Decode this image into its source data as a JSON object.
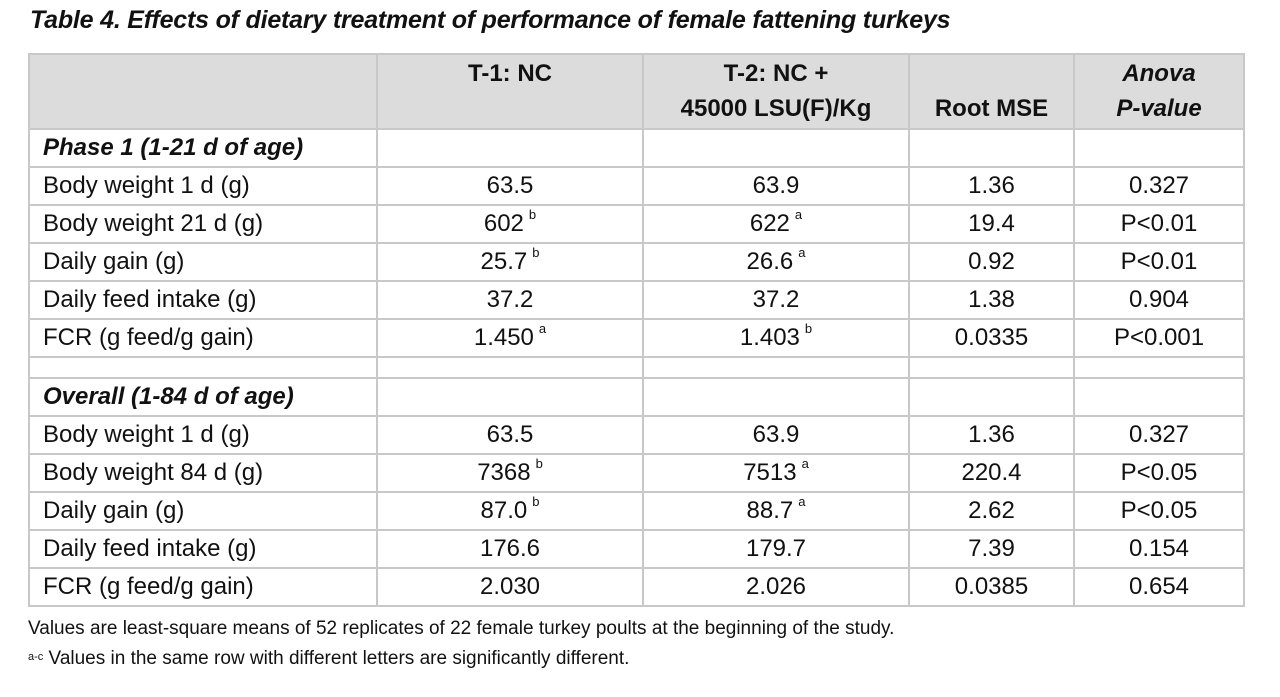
{
  "title": "Table 4. Effects of dietary treatment of performance of female fattening turkeys",
  "header": {
    "col0": "",
    "col1": "T-1: NC",
    "col2_line1": "T-2: NC +",
    "col2_line2": "45000 LSU(F)/Kg",
    "col3": "Root MSE",
    "col4_line1": "Anova",
    "col4_line2": "P-value"
  },
  "phase1": {
    "section": "Phase 1 (1-21 d of age)",
    "rows": [
      {
        "label": "Body weight 1 d (g)",
        "t1": "63.5",
        "t1_sup": "",
        "t2": "63.9",
        "t2_sup": "",
        "mse": "1.36",
        "p": "0.327"
      },
      {
        "label": "Body weight 21 d (g)",
        "t1": "602",
        "t1_sup": "b",
        "t2": "622",
        "t2_sup": "a",
        "mse": "19.4",
        "p": "P<0.01"
      },
      {
        "label": "Daily gain (g)",
        "t1": "25.7",
        "t1_sup": "b",
        "t2": "26.6",
        "t2_sup": "a",
        "mse": "0.92",
        "p": "P<0.01"
      },
      {
        "label": "Daily feed intake (g)",
        "t1": "37.2",
        "t1_sup": "",
        "t2": "37.2",
        "t2_sup": "",
        "mse": "1.38",
        "p": "0.904"
      },
      {
        "label": "FCR (g feed/g gain)",
        "t1": "1.450",
        "t1_sup": "a",
        "t2": "1.403",
        "t2_sup": "b",
        "mse": "0.0335",
        "p": "P<0.001"
      }
    ]
  },
  "overall": {
    "section": "Overall (1-84 d of age)",
    "rows": [
      {
        "label": "Body weight 1 d (g)",
        "t1": "63.5",
        "t1_sup": "",
        "t2": "63.9",
        "t2_sup": "",
        "mse": "1.36",
        "p": "0.327"
      },
      {
        "label": "Body weight 84 d (g)",
        "t1": "7368",
        "t1_sup": "b",
        "t2": "7513",
        "t2_sup": "a",
        "mse": "220.4",
        "p": "P<0.05"
      },
      {
        "label": "Daily gain (g)",
        "t1": "87.0",
        "t1_sup": "b",
        "t2": "88.7",
        "t2_sup": "a",
        "mse": "2.62",
        "p": "P<0.05"
      },
      {
        "label": "Daily feed intake (g)",
        "t1": "176.6",
        "t1_sup": "",
        "t2": "179.7",
        "t2_sup": "",
        "mse": "7.39",
        "p": "0.154"
      },
      {
        "label": "FCR (g feed/g gain)",
        "t1": "2.030",
        "t1_sup": "",
        "t2": "2.026",
        "t2_sup": "",
        "mse": "0.0385",
        "p": "0.654"
      }
    ]
  },
  "notes": {
    "line1": "Values are least-square means of 52 replicates of 22 female turkey poults at the beginning of the study.",
    "line2_sup": "a-c",
    "line2": " Values in the same row with different letters are significantly different."
  }
}
